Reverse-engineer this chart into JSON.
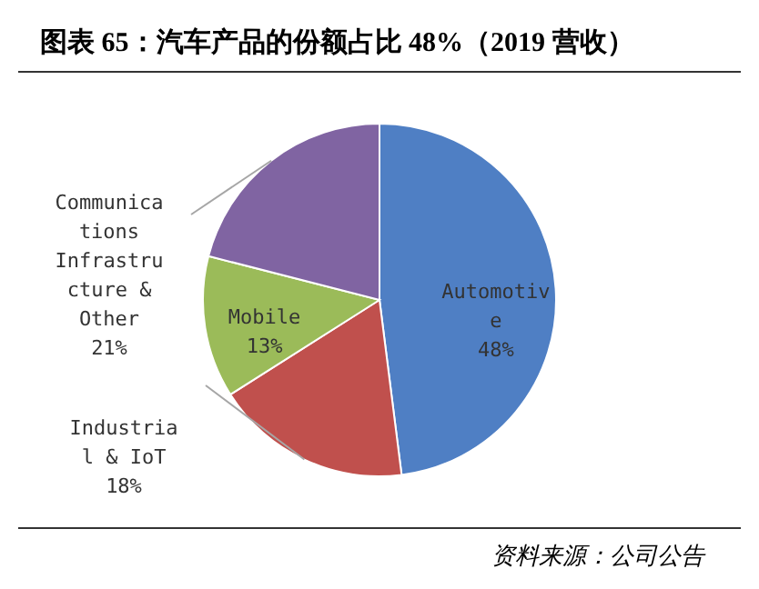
{
  "chart_data": {
    "type": "pie",
    "title": "图表 65：汽车产品的份额占比 48%（2019 营收）",
    "categories": [
      "Automotive",
      "Industrial & IoT",
      "Mobile",
      "Communications Infrastructure & Other"
    ],
    "values": [
      48,
      18,
      13,
      21
    ],
    "value_labels": [
      "48%",
      "18%",
      "13%",
      "21%"
    ],
    "colors": [
      "#4f7fc4",
      "#c0504d",
      "#9bbb59",
      "#8064a2"
    ],
    "annotations": [
      "资料来源：公司公告"
    ]
  }
}
